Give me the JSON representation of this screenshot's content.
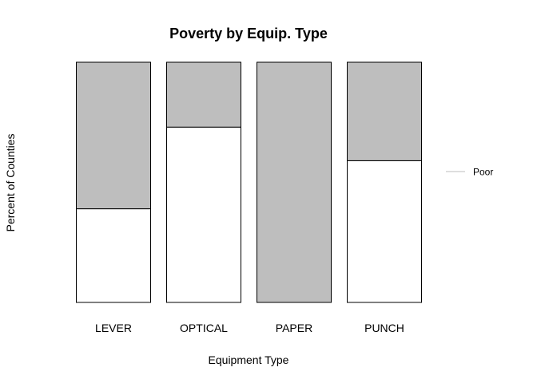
{
  "chart_data": {
    "type": "bar",
    "stacked": true,
    "title": "Poverty by Equip. Type",
    "xlabel": "Equipment Type",
    "ylabel": "Percent of Counties",
    "categories": [
      "LEVER",
      "OPTICAL",
      "PAPER",
      "PUNCH"
    ],
    "ylim": [
      0,
      1
    ],
    "grid": false,
    "legend_position": "right",
    "legend": [
      {
        "label": "Poor",
        "swatch": "line",
        "color": "#bebebe"
      }
    ],
    "series": [
      {
        "values": [
          0.39,
          0.73,
          0.0,
          0.59
        ],
        "color": "#ffffff"
      },
      {
        "name": "Poor",
        "values": [
          0.61,
          0.27,
          1.0,
          0.41
        ],
        "color": "#bebebe"
      }
    ]
  }
}
